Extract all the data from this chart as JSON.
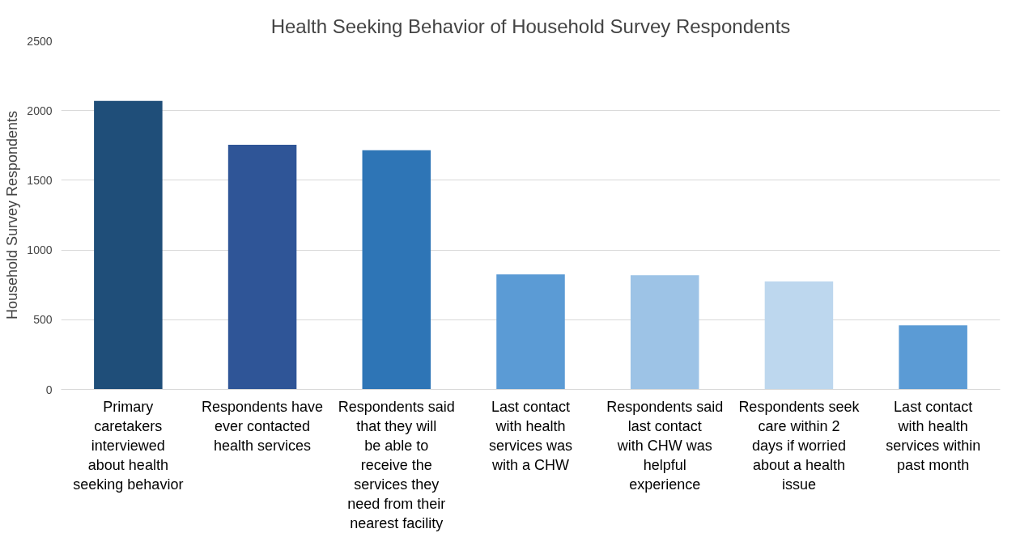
{
  "chart_data": {
    "type": "bar",
    "title": "Health Seeking Behavior of Household Survey Respondents",
    "ylabel": "Household Survey Respondents",
    "categories": [
      "Primary caretakers interviewed about health seeking behavior",
      "Respondents have ever contacted health services",
      "Respondents said that they will be able to receive the services they need from their nearest facility",
      "Last contact with health services was with a CHW",
      "Respondents said last contact with CHW was helpful experience",
      "Respondents seek care within 2 days if worried about a health issue",
      "Last contact with health services within past month"
    ],
    "values": [
      2070,
      1755,
      1715,
      825,
      820,
      775,
      460
    ],
    "colors": [
      "#1f4e79",
      "#2f5597",
      "#2e75b6",
      "#5b9bd5",
      "#9dc3e6",
      "#bdd7ee",
      "#5b9bd5"
    ],
    "ylim": [
      0,
      2500
    ],
    "yticks": [
      0,
      500,
      1000,
      1500,
      2000,
      2500
    ],
    "grid": "y"
  }
}
